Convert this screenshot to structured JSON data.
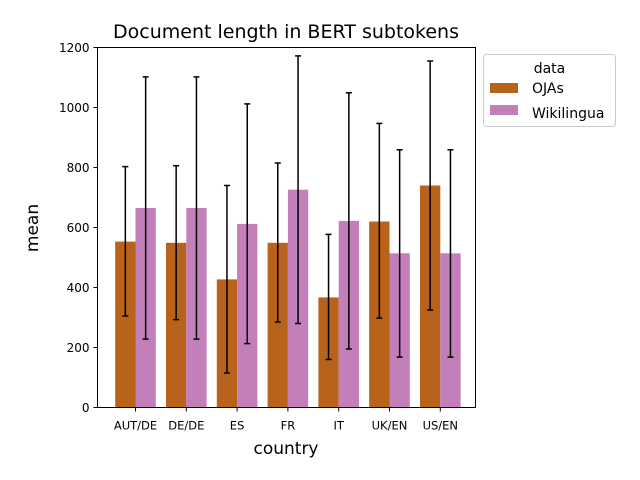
{
  "chart_data": {
    "type": "bar",
    "title": "Document length in BERT subtokens",
    "xlabel": "country",
    "ylabel": "mean",
    "categories": [
      "AUT/DE",
      "DE/DE",
      "ES",
      "FR",
      "IT",
      "UK/EN",
      "US/EN"
    ],
    "series": [
      {
        "name": "OJAs",
        "color": "#b8621c",
        "values": [
          553,
          549,
          427,
          549,
          367,
          620,
          740
        ],
        "err_low": [
          305,
          293,
          115,
          285,
          160,
          298,
          325
        ],
        "err_high": [
          803,
          806,
          740,
          815,
          577,
          947,
          1155
        ]
      },
      {
        "name": "Wikilingua",
        "color": "#c27fba",
        "values": [
          665,
          665,
          612,
          726,
          622,
          514,
          514
        ],
        "err_low": [
          228,
          228,
          213,
          280,
          195,
          168,
          168
        ],
        "err_high": [
          1102,
          1102,
          1012,
          1172,
          1049,
          859,
          859
        ]
      }
    ],
    "ylim": [
      0,
      1200
    ],
    "yticks": [
      0,
      200,
      400,
      600,
      800,
      1000,
      1200
    ],
    "legend": {
      "title": "data",
      "placement": "outside-right-top"
    },
    "grid": false
  }
}
